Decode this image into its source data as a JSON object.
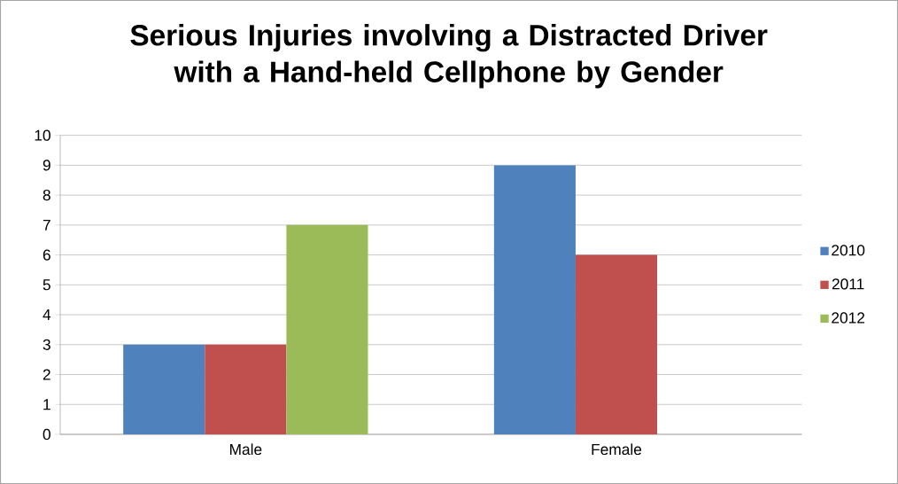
{
  "chart_data": {
    "type": "bar",
    "title": "Serious Injuries involving a Distracted Driver with a Hand-held Cellphone by Gender",
    "categories": [
      "Male",
      "Female"
    ],
    "series": [
      {
        "name": "2010",
        "color": "#4f81bd",
        "values": [
          3,
          9
        ]
      },
      {
        "name": "2011",
        "color": "#c0504d",
        "values": [
          3,
          6
        ]
      },
      {
        "name": "2012",
        "color": "#9bbb59",
        "values": [
          7,
          0
        ]
      }
    ],
    "ylim": [
      0,
      10
    ],
    "yticks": [
      0,
      1,
      2,
      3,
      4,
      5,
      6,
      7,
      8,
      9,
      10
    ],
    "grid": "y",
    "legend": "right"
  }
}
